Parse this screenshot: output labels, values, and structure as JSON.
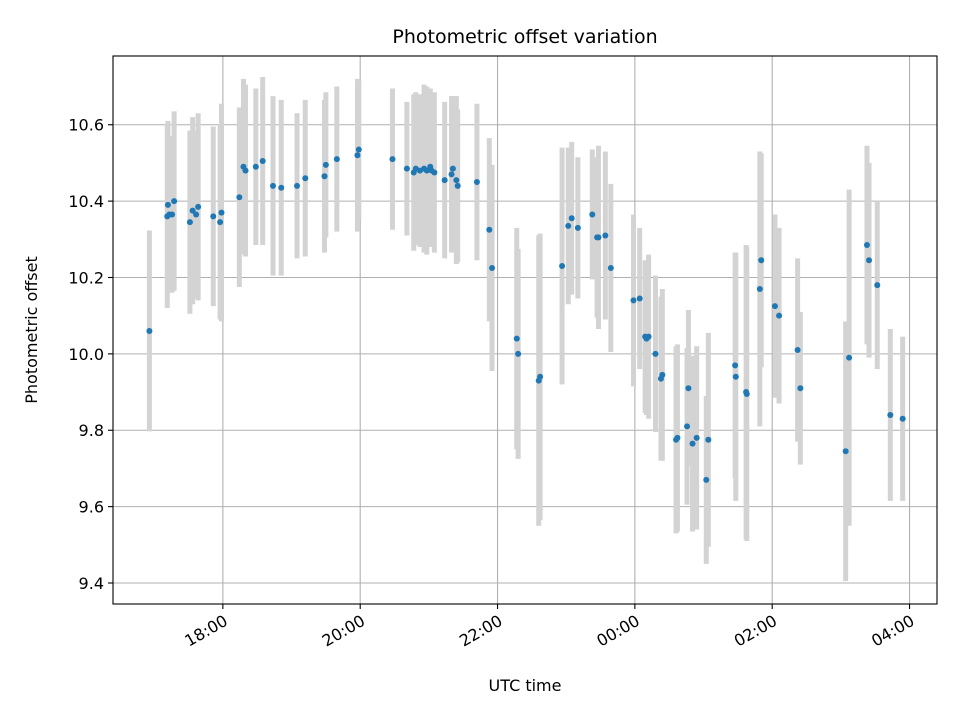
{
  "chart_data": {
    "type": "scatter",
    "title": "Photometric offset variation",
    "xlabel": "UTC time",
    "ylabel": "Photometric offset",
    "xlim": [
      16.4,
      28.4
    ],
    "ylim": [
      9.345,
      10.78
    ],
    "grid": true,
    "legend": "none",
    "x_ticks": [
      {
        "value": 18,
        "label": "18:00"
      },
      {
        "value": 20,
        "label": "20:00"
      },
      {
        "value": 22,
        "label": "22:00"
      },
      {
        "value": 24,
        "label": "00:00"
      },
      {
        "value": 26,
        "label": "02:00"
      },
      {
        "value": 28,
        "label": "04:00"
      }
    ],
    "y_ticks": [
      {
        "value": 9.4,
        "label": "9.4"
      },
      {
        "value": 9.6,
        "label": "9.6"
      },
      {
        "value": 9.8,
        "label": "9.8"
      },
      {
        "value": 10.0,
        "label": "10.0"
      },
      {
        "value": 10.2,
        "label": "10.2"
      },
      {
        "value": 10.4,
        "label": "10.4"
      },
      {
        "value": 10.6,
        "label": "10.6"
      }
    ],
    "series": [
      {
        "name": "offset",
        "x": [
          16.93,
          17.19,
          17.2,
          17.22,
          17.26,
          17.29,
          17.52,
          17.56,
          17.61,
          17.64,
          17.86,
          17.96,
          17.98,
          18.24,
          18.3,
          18.33,
          18.48,
          18.58,
          18.73,
          18.85,
          19.08,
          19.2,
          19.48,
          19.5,
          19.66,
          19.96,
          19.98,
          20.47,
          20.68,
          20.78,
          20.81,
          20.87,
          20.93,
          20.97,
          21.02,
          21.04,
          21.08,
          21.23,
          21.33,
          21.35,
          21.4,
          21.42,
          21.7,
          21.88,
          21.92,
          22.28,
          22.3,
          22.6,
          22.62,
          22.94,
          23.03,
          23.08,
          23.17,
          23.38,
          23.45,
          23.47,
          23.57,
          23.65,
          23.98,
          24.07,
          24.15,
          24.17,
          24.2,
          24.3,
          24.38,
          24.4,
          24.6,
          24.62,
          24.76,
          24.78,
          24.84,
          24.9,
          25.04,
          25.07,
          25.46,
          25.47,
          25.62,
          25.63,
          25.82,
          25.84,
          26.04,
          26.1,
          26.37,
          26.41,
          27.07,
          27.12,
          27.38,
          27.41,
          27.53,
          27.72,
          27.9
        ],
        "y": [
          10.06,
          10.36,
          10.39,
          10.365,
          10.365,
          10.4,
          10.345,
          10.375,
          10.365,
          10.385,
          10.36,
          10.345,
          10.37,
          10.41,
          10.49,
          10.48,
          10.49,
          10.505,
          10.44,
          10.435,
          10.44,
          10.46,
          10.465,
          10.495,
          10.51,
          10.52,
          10.535,
          10.51,
          10.485,
          10.475,
          10.485,
          10.48,
          10.485,
          10.48,
          10.49,
          10.48,
          10.475,
          10.455,
          10.47,
          10.485,
          10.455,
          10.44,
          10.45,
          10.325,
          10.225,
          10.04,
          10.0,
          9.93,
          9.94,
          10.23,
          10.335,
          10.355,
          10.33,
          10.365,
          10.305,
          10.305,
          10.31,
          10.225,
          10.14,
          10.145,
          10.045,
          10.04,
          10.045,
          10.0,
          9.935,
          9.945,
          9.775,
          9.78,
          9.81,
          9.91,
          9.765,
          9.78,
          9.67,
          9.775,
          9.97,
          9.94,
          9.9,
          9.895,
          10.17,
          10.245,
          10.125,
          10.1,
          10.01,
          9.91,
          9.745,
          9.99,
          10.285,
          10.245,
          10.18,
          9.84,
          9.83
        ],
        "yerr": [
          0.263,
          0.24,
          0.22,
          0.195,
          0.205,
          0.235,
          0.24,
          0.245,
          0.22,
          0.245,
          0.235,
          0.255,
          0.285,
          0.235,
          0.23,
          0.225,
          0.205,
          0.22,
          0.235,
          0.23,
          0.19,
          0.205,
          0.2,
          0.19,
          0.19,
          0.2,
          0.18,
          0.185,
          0.175,
          0.205,
          0.2,
          0.2,
          0.22,
          0.22,
          0.205,
          0.2,
          0.21,
          0.205,
          0.205,
          0.19,
          0.22,
          0.2,
          0.205,
          0.24,
          0.27,
          0.29,
          0.275,
          0.38,
          0.375,
          0.31,
          0.205,
          0.2,
          0.185,
          0.17,
          0.21,
          0.24,
          0.22,
          0.22,
          0.225,
          0.185,
          0.2,
          0.2,
          0.215,
          0.205,
          0.215,
          0.225,
          0.245,
          0.245,
          0.205,
          0.205,
          0.23,
          0.24,
          0.22,
          0.28,
          0.295,
          0.325,
          0.385,
          0.385,
          0.36,
          0.28,
          0.24,
          0.23,
          0.24,
          0.2,
          0.34,
          0.44,
          0.26,
          0.255,
          0.22,
          0.225,
          0.215
        ]
      }
    ]
  }
}
